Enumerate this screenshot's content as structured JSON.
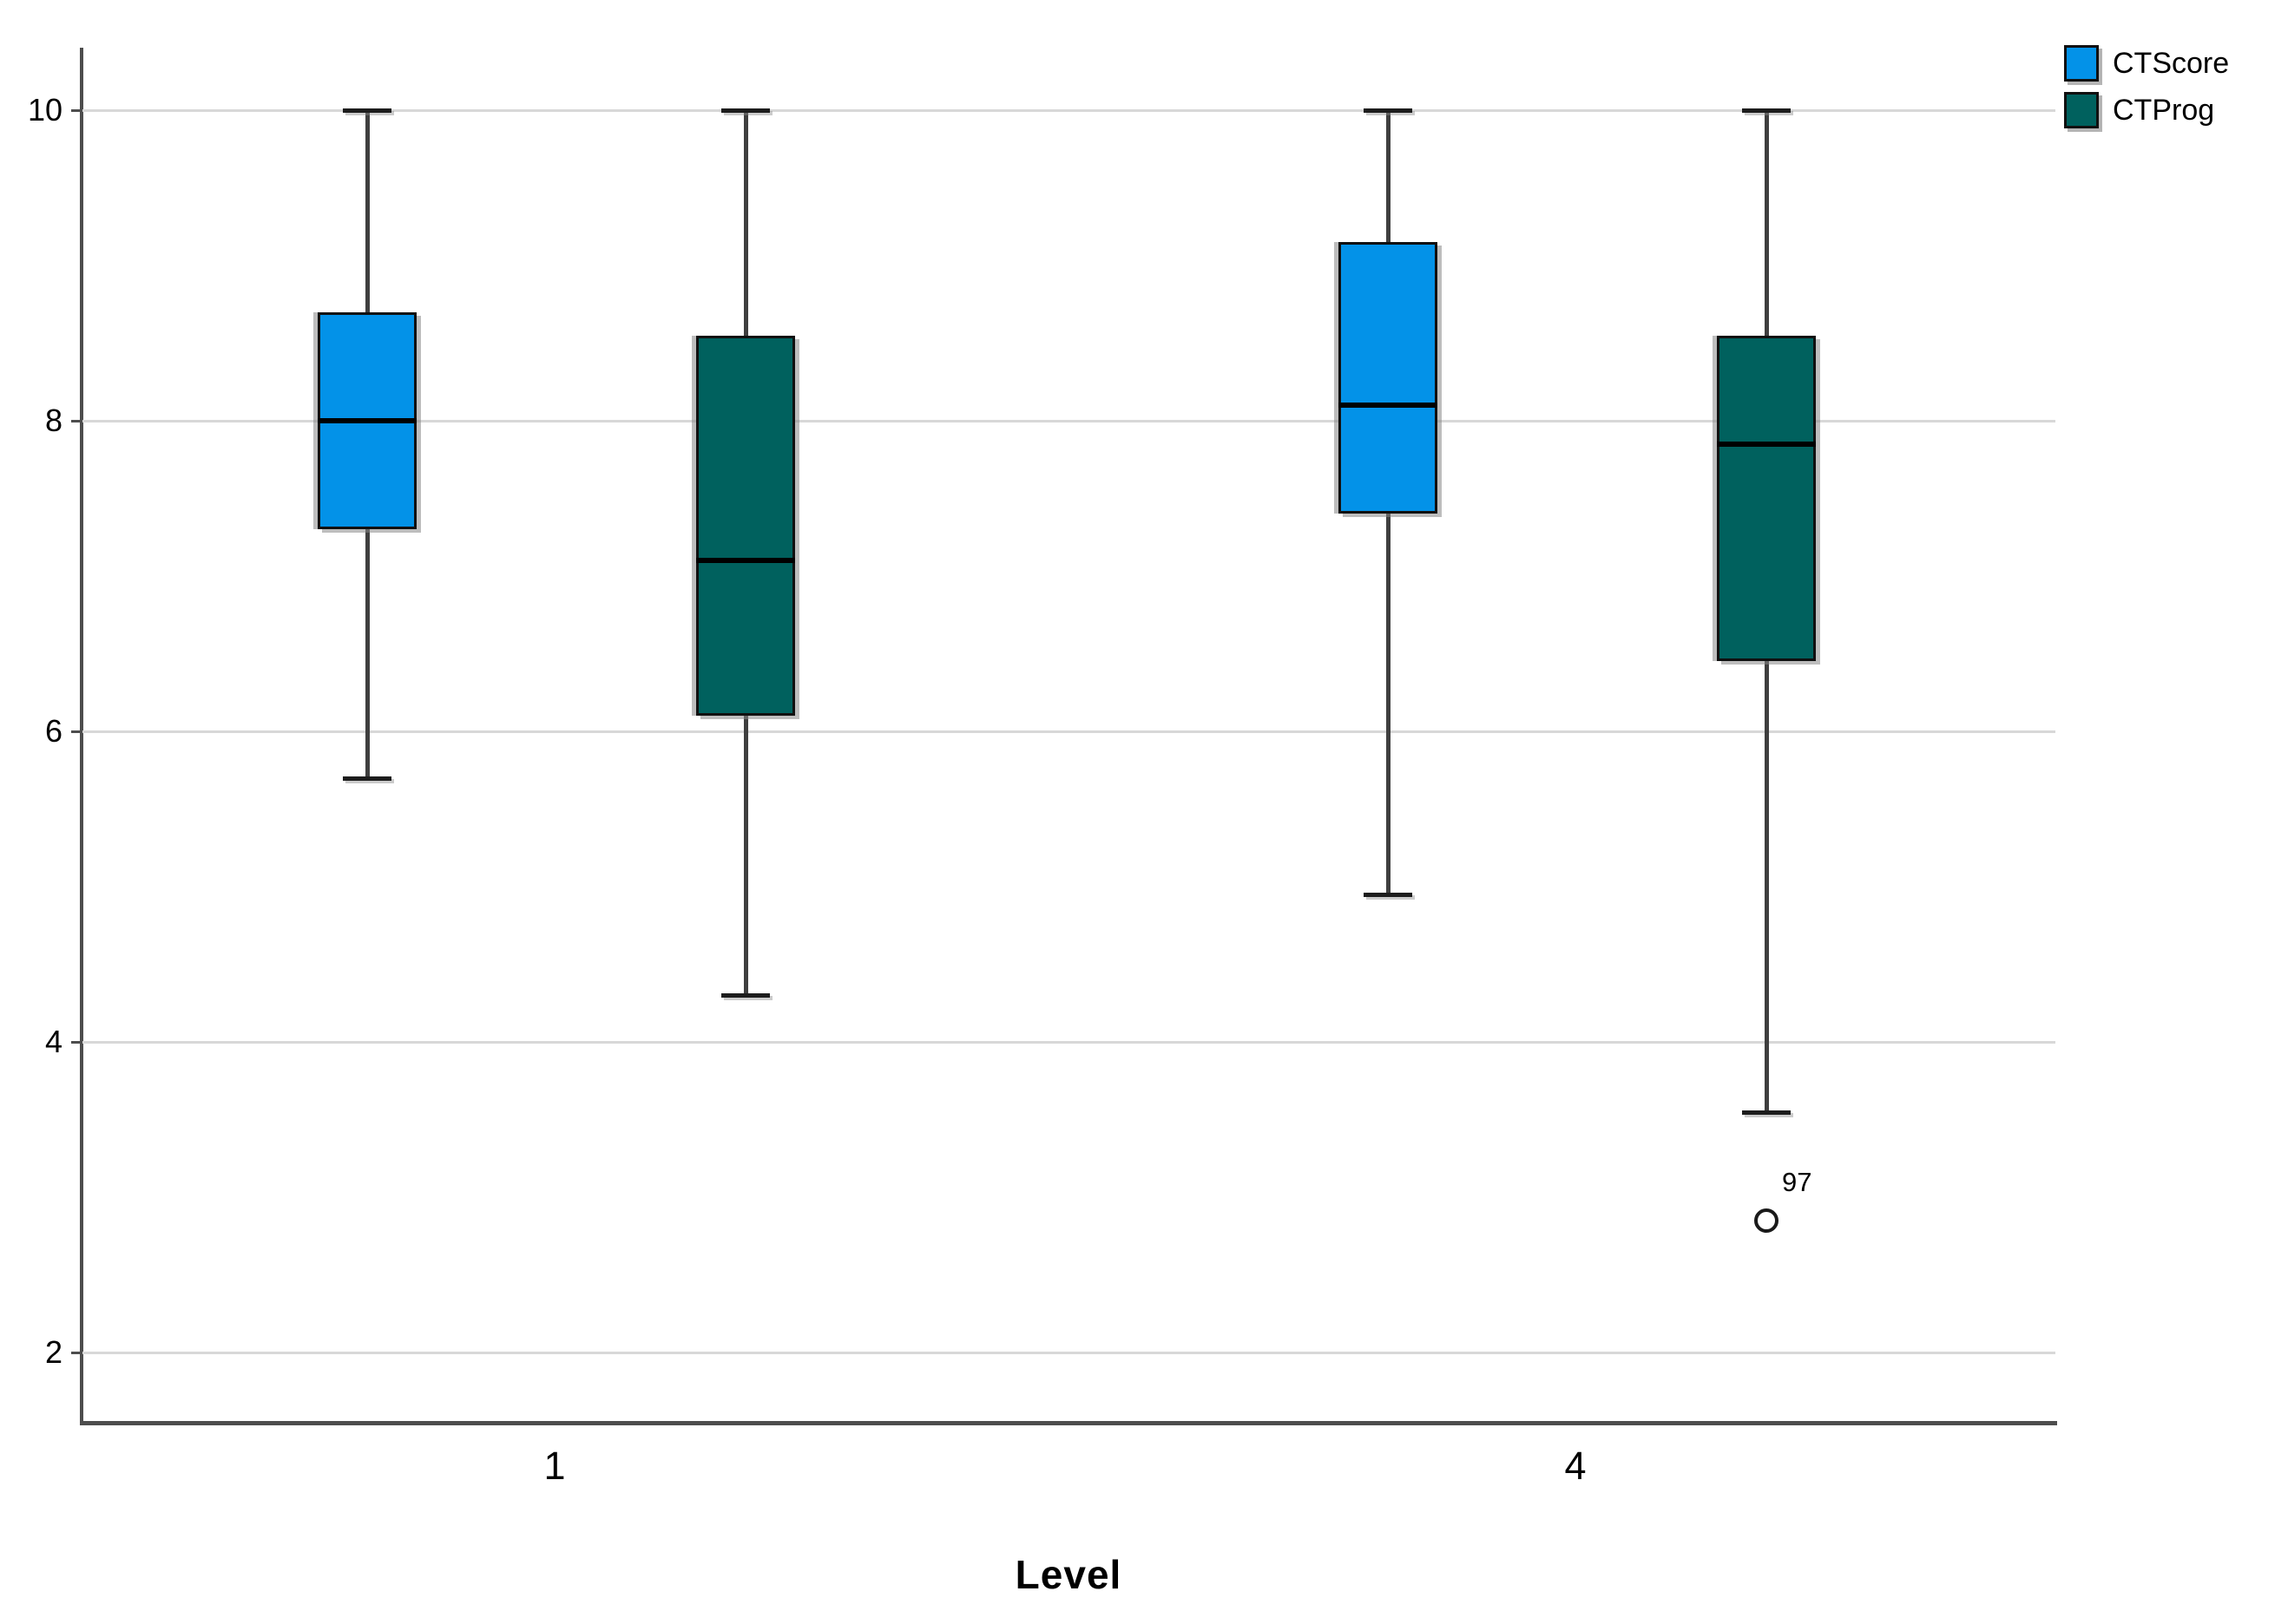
{
  "chart_data": {
    "type": "boxplot",
    "title": "",
    "xlabel": "Level",
    "ylabel": "",
    "categories": [
      "1",
      "4"
    ],
    "yticks": [
      10,
      8,
      6,
      4,
      2
    ],
    "ylim": [
      1.5,
      10.4
    ],
    "grid": "horizontal-light-gray",
    "legend_position": "top-right",
    "series": [
      {
        "name": "CTScore",
        "color": "#0392E8",
        "boxes": [
          {
            "category": "1",
            "whisker_low": 5.7,
            "q1": 7.3,
            "median": 8.0,
            "q3": 8.7,
            "whisker_high": 10.0,
            "outliers": []
          },
          {
            "category": "4",
            "whisker_low": 4.95,
            "q1": 7.4,
            "median": 8.1,
            "q3": 9.15,
            "whisker_high": 10.0,
            "outliers": []
          }
        ]
      },
      {
        "name": "CTProg",
        "color": "#00615E",
        "boxes": [
          {
            "category": "1",
            "whisker_low": 4.3,
            "q1": 6.1,
            "median": 7.1,
            "q3": 8.55,
            "whisker_high": 10.0,
            "outliers": []
          },
          {
            "category": "4",
            "whisker_low": 3.55,
            "q1": 6.45,
            "median": 7.85,
            "q3": 8.55,
            "whisker_high": 10.0,
            "outliers": [
              {
                "value": 2.85,
                "label": "97"
              }
            ]
          }
        ]
      }
    ]
  },
  "colors": {
    "gridline": "#D8D8D8",
    "axis": "#4D4D4D",
    "box_border": "#101010",
    "median": "#000000",
    "whisker": "#3F3F3F",
    "background": "#FFFFFF"
  }
}
